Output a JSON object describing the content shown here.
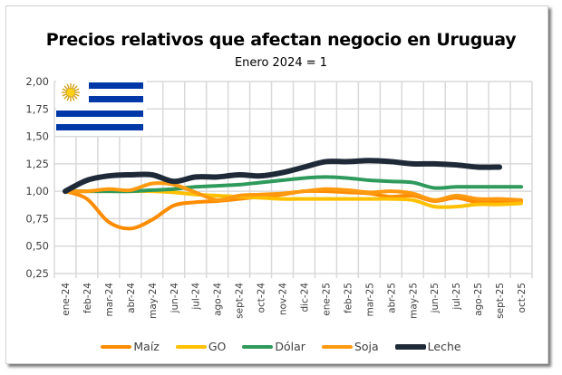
{
  "chart_data": {
    "type": "line",
    "title": "Precios relativos que afectan negocio en Uruguay",
    "subtitle": "Enero 2024 = 1",
    "xlabel": "",
    "ylabel": "",
    "ylim": [
      0.25,
      2.0
    ],
    "yticks": [
      "0,25",
      "0,50",
      "0,75",
      "1,00",
      "1,25",
      "1,50",
      "1,75",
      "2,00"
    ],
    "ytick_values": [
      0.25,
      0.5,
      0.75,
      1.0,
      1.25,
      1.5,
      1.75,
      2.0
    ],
    "grid": true,
    "legend_position": "bottom",
    "categories": [
      "ene-24",
      "feb-24",
      "mar-24",
      "abr-24",
      "may-24",
      "jun-24",
      "jul-24",
      "ago-24",
      "sept-24",
      "oct-24",
      "nov-24",
      "dic-24",
      "ene-25",
      "feb-25",
      "mar-25",
      "abr-25",
      "may-25",
      "jun-25",
      "jul-25",
      "ago-25",
      "sept-25",
      "oct-25"
    ],
    "series": [
      {
        "name": "Maíz",
        "color": "#FF8C00",
        "values": [
          1.0,
          0.93,
          0.72,
          0.66,
          0.74,
          0.87,
          0.9,
          0.91,
          0.93,
          0.95,
          0.97,
          1.0,
          1.0,
          0.99,
          0.98,
          0.95,
          0.96,
          0.91,
          0.94,
          0.9,
          0.9,
          0.91
        ]
      },
      {
        "name": "GO",
        "color": "#FFC000",
        "values": [
          1.0,
          1.0,
          1.0,
          1.0,
          1.0,
          0.99,
          0.97,
          0.96,
          0.95,
          0.94,
          0.93,
          0.93,
          0.93,
          0.93,
          0.93,
          0.93,
          0.92,
          0.86,
          0.86,
          0.88,
          0.88,
          0.89
        ]
      },
      {
        "name": "Dólar",
        "color": "#2E9A5C",
        "values": [
          1.0,
          1.0,
          1.0,
          1.0,
          1.01,
          1.02,
          1.04,
          1.05,
          1.06,
          1.08,
          1.1,
          1.12,
          1.13,
          1.12,
          1.1,
          1.09,
          1.08,
          1.03,
          1.04,
          1.04,
          1.04,
          1.04
        ]
      },
      {
        "name": "Soja",
        "color": "#FF9A10",
        "values": [
          1.0,
          1.0,
          1.02,
          1.01,
          1.07,
          1.06,
          0.99,
          0.92,
          0.96,
          0.97,
          0.98,
          1.0,
          1.02,
          1.01,
          0.99,
          1.0,
          0.98,
          0.92,
          0.96,
          0.93,
          0.93,
          0.92
        ]
      },
      {
        "name": "Leche",
        "color": "#1F2A38",
        "values": [
          1.0,
          1.1,
          1.14,
          1.15,
          1.15,
          1.09,
          1.13,
          1.13,
          1.15,
          1.14,
          1.17,
          1.22,
          1.27,
          1.27,
          1.28,
          1.27,
          1.25,
          1.25,
          1.24,
          1.22,
          1.22,
          null
        ]
      }
    ]
  },
  "flag": {
    "name": "Uruguay",
    "stripe_color": "#0038A8",
    "sun_color": "#FCD116"
  }
}
